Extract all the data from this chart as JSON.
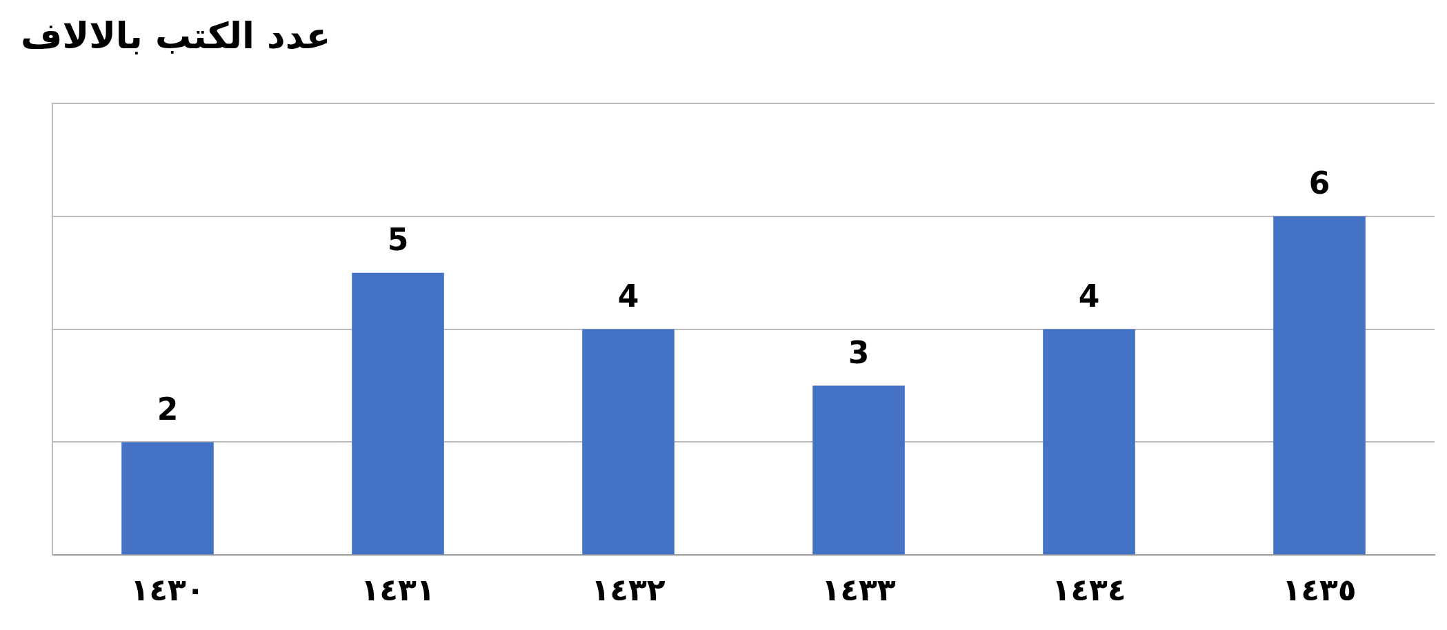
{
  "chart_data": {
    "type": "bar",
    "title": "عدد الكتب بالالاف",
    "categories": [
      "١٤٣٠",
      "١٤٣١",
      "١٤٣٢",
      "١٤٣٣",
      "١٤٣٤",
      "١٤٣٥"
    ],
    "values": [
      2,
      5,
      4,
      3,
      4,
      6
    ],
    "color": "#4472c4",
    "ylim": [
      0,
      8
    ],
    "yticks": [
      {
        "value": 0,
        "label": null
      },
      {
        "value": 2,
        "label": null
      },
      {
        "value": 4,
        "label": null
      },
      {
        "value": 6,
        "label": null
      },
      {
        "value": 8,
        "label": null
      }
    ],
    "tick_labels": "x",
    "grid": "y",
    "legend": false,
    "data_labels": true
  }
}
